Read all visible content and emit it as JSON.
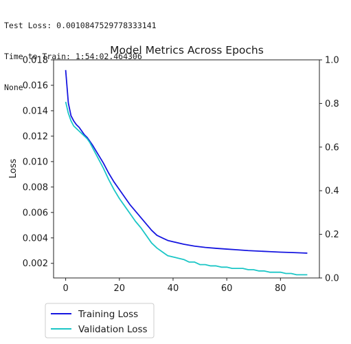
{
  "console": {
    "lines": [
      "Test Loss: 0.0010847529778333141",
      "Time to Train: 1:54:02.464306",
      "None"
    ]
  },
  "chart_data": {
    "type": "line",
    "title": "Model Metrics Across Epochs",
    "xlabel": "",
    "ylabel": "Loss",
    "xlim": [
      -4.5,
      94.5
    ],
    "ylim": [
      0.00085,
      0.018
    ],
    "xticks": [
      "0",
      "20",
      "40",
      "60",
      "80"
    ],
    "xtick_values": [
      0,
      20,
      40,
      60,
      80
    ],
    "yticks": [
      "0.002",
      "0.004",
      "0.006",
      "0.008",
      "0.010",
      "0.012",
      "0.014",
      "0.016",
      "0.018"
    ],
    "ytick_values": [
      0.002,
      0.004,
      0.006,
      0.008,
      0.01,
      0.012,
      0.014,
      0.016,
      0.018
    ],
    "y2lim": [
      0.0,
      1.0
    ],
    "y2ticks": [
      "0.0",
      "0.2",
      "0.4",
      "0.6",
      "0.8",
      "1.0"
    ],
    "y2tick_values": [
      0.0,
      0.2,
      0.4,
      0.6,
      0.8,
      1.0
    ],
    "grid": false,
    "legend_position": "below-left",
    "series": [
      {
        "name": "Training Loss",
        "color": "#1515e0",
        "x": [
          0,
          1,
          2,
          3,
          4,
          5,
          6,
          7,
          8,
          9,
          10,
          12,
          14,
          16,
          18,
          20,
          22,
          24,
          26,
          28,
          30,
          32,
          34,
          36,
          38,
          40,
          44,
          48,
          52,
          56,
          60,
          64,
          68,
          72,
          76,
          80,
          84,
          88,
          90
        ],
        "y": [
          0.0172,
          0.0146,
          0.0136,
          0.0132,
          0.0129,
          0.0127,
          0.0124,
          0.0121,
          0.0119,
          0.0116,
          0.0113,
          0.0106,
          0.0099,
          0.0091,
          0.0084,
          0.0078,
          0.0072,
          0.0066,
          0.0061,
          0.0056,
          0.0051,
          0.0046,
          0.0042,
          0.004,
          0.0038,
          0.0037,
          0.0035,
          0.00335,
          0.00325,
          0.00318,
          0.00312,
          0.00306,
          0.003,
          0.00296,
          0.00292,
          0.00288,
          0.00285,
          0.00282,
          0.0028
        ]
      },
      {
        "name": "Validation Loss",
        "color": "#1bc6c6",
        "x": [
          0,
          1,
          2,
          3,
          4,
          5,
          6,
          7,
          8,
          9,
          10,
          12,
          14,
          16,
          18,
          20,
          22,
          24,
          26,
          28,
          30,
          32,
          34,
          36,
          38,
          40,
          42,
          44,
          46,
          48,
          50,
          52,
          54,
          56,
          58,
          60,
          62,
          64,
          66,
          68,
          70,
          72,
          74,
          76,
          78,
          80,
          82,
          84,
          86,
          88,
          90
        ],
        "y": [
          0.0147,
          0.0138,
          0.0132,
          0.0128,
          0.0126,
          0.0124,
          0.0122,
          0.012,
          0.0118,
          0.0115,
          0.0111,
          0.0103,
          0.0095,
          0.0086,
          0.0078,
          0.0071,
          0.0065,
          0.0059,
          0.0053,
          0.0048,
          0.0042,
          0.0036,
          0.0032,
          0.0029,
          0.0026,
          0.0025,
          0.0024,
          0.0023,
          0.0021,
          0.0021,
          0.0019,
          0.0019,
          0.0018,
          0.0018,
          0.0017,
          0.0017,
          0.0016,
          0.0016,
          0.0016,
          0.0015,
          0.0015,
          0.0014,
          0.0014,
          0.0013,
          0.0013,
          0.0013,
          0.0012,
          0.0012,
          0.0011,
          0.0011,
          0.0011
        ]
      }
    ]
  }
}
